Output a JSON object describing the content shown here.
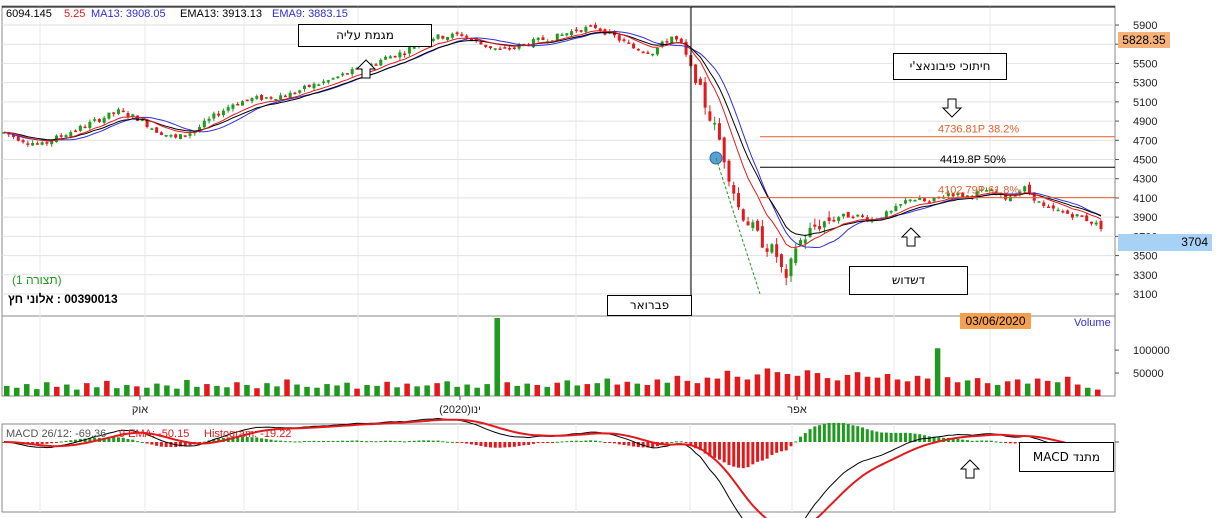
{
  "header": {
    "price_value": "6094.145",
    "price_fragment": "5.25",
    "ma13_label": "MA13: 3908.05",
    "ema13_label": "EMA13: 3913.13",
    "ema9_label": "EMA9: 3883.15"
  },
  "annotations": {
    "uptrend": "מגמת עליה",
    "fibonacci": "חיתוכי פיבונאצ'י",
    "consolidation": "דשדוש",
    "february": "פברואר",
    "macd_indicator": "מתנד MACD"
  },
  "instrument": {
    "view_label": "(תצורה 1)",
    "name_line": "00390013 : אלוני חץ"
  },
  "price_badges": {
    "last": "5828.35",
    "current": "3704",
    "date": "03/06/2020"
  },
  "volume_label": "Volume",
  "macd_header": {
    "macd": "MACD 26/12: -69.36",
    "ema": "9 EMA: -50.15",
    "histogram": "Histogram: -19.22"
  },
  "colors": {
    "up": "#1f9a1f",
    "down": "#e3191c",
    "ma13": "#2f2fd8",
    "ema13": "#000000",
    "ema9": "#e3191c",
    "fib": "#e85c2a",
    "badge_orange": "#f5b37a",
    "badge_blue": "#a8d2f5"
  },
  "chart_data": [
    {
      "type": "candlestick",
      "y_ticks": [
        "5900",
        "5700",
        "5500",
        "5300",
        "5100",
        "4900",
        "4700",
        "4500",
        "4300",
        "4100",
        "3900",
        "3700",
        "3500",
        "3300",
        "3100"
      ],
      "ylim": [
        3000,
        6000
      ],
      "x_ticks": [
        "אוק",
        "ינו(2020)",
        "אפר"
      ],
      "series": [
        {
          "name": "MA13",
          "value": 3908.05
        },
        {
          "name": "EMA13",
          "value": 3913.13
        },
        {
          "name": "EMA9",
          "value": 3883.15
        }
      ],
      "trend_points": [
        [
          0,
          4780
        ],
        [
          4,
          4700
        ],
        [
          8,
          4650
        ],
        [
          12,
          4750
        ],
        [
          16,
          4830
        ],
        [
          20,
          4920
        ],
        [
          24,
          5000
        ],
        [
          28,
          4930
        ],
        [
          32,
          4800
        ],
        [
          36,
          4720
        ],
        [
          40,
          4800
        ],
        [
          44,
          4950
        ],
        [
          48,
          5080
        ],
        [
          52,
          5130
        ],
        [
          56,
          5150
        ],
        [
          60,
          5180
        ],
        [
          64,
          5260
        ],
        [
          68,
          5320
        ],
        [
          72,
          5400
        ],
        [
          76,
          5460
        ],
        [
          80,
          5560
        ],
        [
          84,
          5620
        ],
        [
          88,
          5760
        ],
        [
          92,
          5780
        ],
        [
          96,
          5800
        ],
        [
          100,
          5700
        ],
        [
          104,
          5640
        ],
        [
          108,
          5680
        ],
        [
          112,
          5740
        ],
        [
          116,
          5780
        ],
        [
          120,
          5850
        ],
        [
          124,
          5880
        ],
        [
          128,
          5780
        ],
        [
          132,
          5660
        ],
        [
          136,
          5620
        ],
        [
          140,
          5780
        ],
        [
          142,
          5700
        ],
        [
          146,
          5200
        ],
        [
          150,
          4700
        ],
        [
          154,
          4000
        ],
        [
          158,
          3700
        ],
        [
          162,
          3500
        ],
        [
          164,
          3200
        ],
        [
          166,
          3600
        ],
        [
          170,
          3800
        ],
        [
          174,
          3900
        ],
        [
          178,
          3920
        ],
        [
          182,
          3880
        ],
        [
          186,
          3950
        ],
        [
          190,
          4100
        ],
        [
          194,
          4050
        ],
        [
          198,
          4150
        ],
        [
          202,
          4120
        ],
        [
          206,
          4180
        ],
        [
          210,
          4100
        ],
        [
          214,
          4200
        ],
        [
          218,
          4000
        ],
        [
          222,
          3950
        ],
        [
          226,
          3900
        ],
        [
          230,
          3800
        ]
      ],
      "fib_levels": [
        {
          "label": "4736.81P  38.2%",
          "value": 4736.81
        },
        {
          "label": "4419.8P  50%",
          "value": 4419.8
        },
        {
          "label": "4102.79P  61.8%",
          "value": 4102.79
        }
      ],
      "last_close": 3704
    },
    {
      "type": "bar",
      "name": "Volume",
      "y_ticks": [
        "100000",
        "50000"
      ],
      "ylim": [
        0,
        170000
      ],
      "values": [
        22000,
        18000,
        26000,
        15000,
        30000,
        20000,
        25000,
        14000,
        28000,
        19000,
        33000,
        17000,
        24000,
        21000,
        18000,
        27000,
        23000,
        16000,
        35000,
        20000,
        26000,
        22000,
        19000,
        30000,
        24000,
        17000,
        28000,
        21000,
        36000,
        25000,
        20000,
        18000,
        26000,
        23000,
        29000,
        16000,
        24000,
        22000,
        31000,
        19000,
        27000,
        21000,
        23000,
        28000,
        32000,
        20000,
        25000,
        18000,
        26000,
        170000,
        30000,
        22000,
        27000,
        24000,
        20000,
        29000,
        34000,
        23000,
        26000,
        28000,
        38000,
        25000,
        31000,
        27000,
        24000,
        36000,
        29000,
        44000,
        33000,
        28000,
        40000,
        38000,
        55000,
        42000,
        36000,
        47000,
        60000,
        52000,
        48000,
        44000,
        56000,
        50000,
        39000,
        34000,
        46000,
        52000,
        42000,
        40000,
        48000,
        36000,
        32000,
        44000,
        38000,
        104000,
        41000,
        30000,
        34000,
        39000,
        28000,
        24000,
        32000,
        36000,
        27000,
        38000,
        33000,
        30000,
        42000,
        25000,
        18000,
        14000
      ]
    },
    {
      "type": "line",
      "name": "MACD",
      "series": [
        {
          "name": "MACD 26/12",
          "last": -69.36
        },
        {
          "name": "9 EMA",
          "last": -50.15
        },
        {
          "name": "Histogram",
          "last": -19.22
        }
      ]
    }
  ]
}
